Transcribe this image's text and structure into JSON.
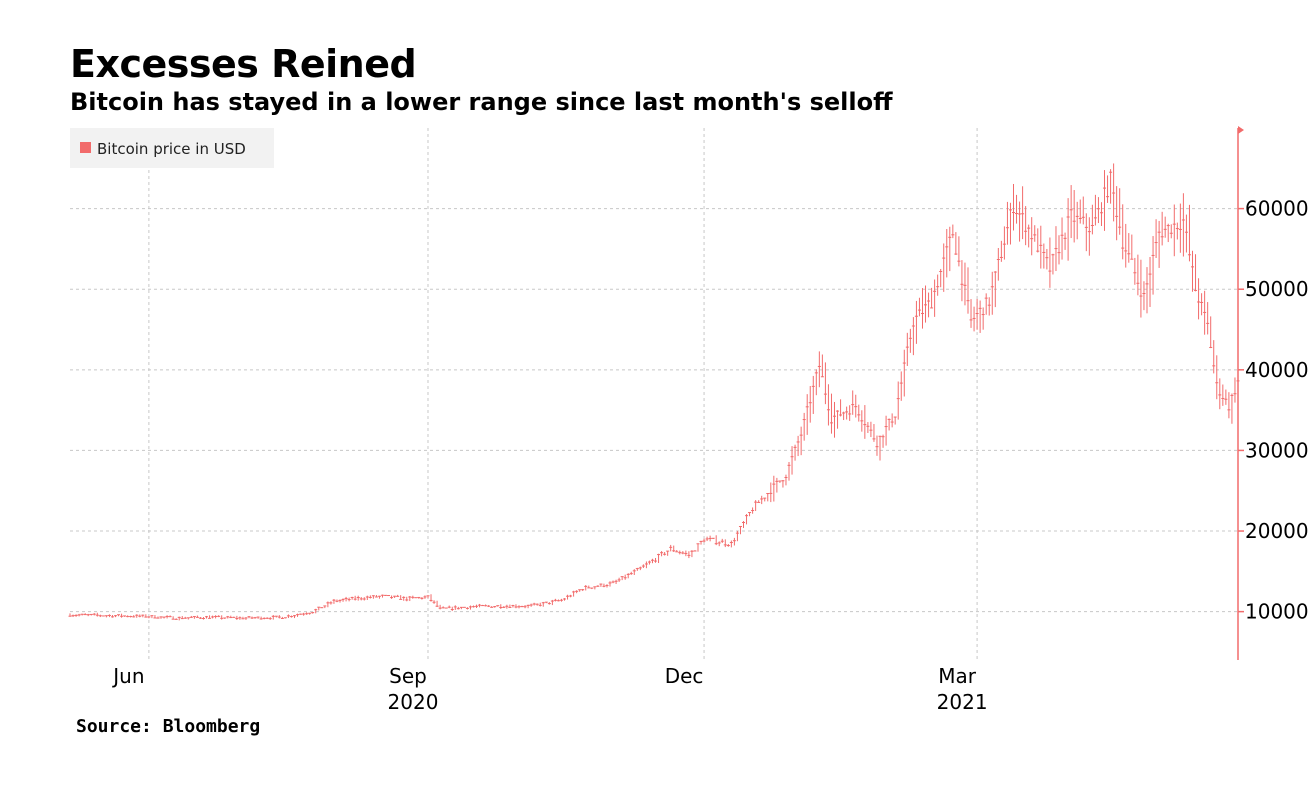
{
  "title": "Excesses Reined",
  "subtitle": "Bitcoin has stayed in a lower range since last month's selloff",
  "source": "Source: Bloomberg",
  "colors": {
    "series": "#f26b6b",
    "grid": "#c8c8c8",
    "legend_bg": "#f2f2f2",
    "axis": "#f26b6b"
  },
  "chart_data": {
    "type": "line",
    "series_style": "daily high-low range bars",
    "y_axis_side": "right",
    "ylim": [
      4000,
      70000
    ],
    "yticks": [
      10000,
      20000,
      30000,
      40000,
      50000,
      60000
    ],
    "ytick_labels": [
      "10000",
      "20000",
      "30000",
      "40000",
      "50000",
      "60000"
    ],
    "xlim": [
      "2020-05-06",
      "2021-05-26"
    ],
    "xticks": [
      {
        "date": "2020-06-01",
        "label": "Jun",
        "year": ""
      },
      {
        "date": "2020-09-01",
        "label": "Sep",
        "year": "2020"
      },
      {
        "date": "2020-12-01",
        "label": "Dec",
        "year": ""
      },
      {
        "date": "2021-03-01",
        "label": "Mar",
        "year": "2021"
      }
    ],
    "grid": true,
    "legend": {
      "placement": "top-left",
      "entries": [
        "Bitcoin price in USD"
      ]
    },
    "series": [
      {
        "name": "Bitcoin price in USD",
        "points": [
          [
            "2020-05-06",
            9600
          ],
          [
            "2020-05-20",
            9500
          ],
          [
            "2020-06-01",
            9400
          ],
          [
            "2020-06-10",
            9200
          ],
          [
            "2020-06-20",
            9300
          ],
          [
            "2020-07-01",
            9200
          ],
          [
            "2020-07-15",
            9300
          ],
          [
            "2020-07-25",
            10000
          ],
          [
            "2020-08-01",
            11300
          ],
          [
            "2020-08-10",
            11700
          ],
          [
            "2020-08-17",
            11900
          ],
          [
            "2020-08-25",
            11600
          ],
          [
            "2020-09-01",
            11800
          ],
          [
            "2020-09-05",
            10300
          ],
          [
            "2020-09-15",
            10600
          ],
          [
            "2020-09-25",
            10700
          ],
          [
            "2020-10-05",
            10700
          ],
          [
            "2020-10-15",
            11400
          ],
          [
            "2020-10-22",
            12900
          ],
          [
            "2020-11-01",
            13500
          ],
          [
            "2020-11-10",
            15300
          ],
          [
            "2020-11-20",
            17800
          ],
          [
            "2020-11-26",
            17000
          ],
          [
            "2020-12-01",
            19000
          ],
          [
            "2020-12-10",
            18400
          ],
          [
            "2020-12-17",
            22800
          ],
          [
            "2020-12-28",
            27000
          ],
          [
            "2021-01-02",
            32000
          ],
          [
            "2021-01-08",
            40500
          ],
          [
            "2021-01-12",
            34000
          ],
          [
            "2021-01-20",
            35500
          ],
          [
            "2021-01-27",
            31000
          ],
          [
            "2021-02-02",
            34500
          ],
          [
            "2021-02-08",
            46000
          ],
          [
            "2021-02-14",
            48500
          ],
          [
            "2021-02-21",
            57000
          ],
          [
            "2021-02-27",
            46000
          ],
          [
            "2021-03-05",
            48500
          ],
          [
            "2021-03-13",
            60500
          ],
          [
            "2021-03-18",
            57500
          ],
          [
            "2021-03-25",
            52500
          ],
          [
            "2021-04-01",
            59000
          ],
          [
            "2021-04-08",
            57500
          ],
          [
            "2021-04-14",
            63500
          ],
          [
            "2021-04-18",
            56000
          ],
          [
            "2021-04-25",
            49000
          ],
          [
            "2021-04-30",
            57000
          ],
          [
            "2021-05-08",
            58500
          ],
          [
            "2021-05-12",
            50000
          ],
          [
            "2021-05-16",
            45500
          ],
          [
            "2021-05-19",
            38000
          ],
          [
            "2021-05-23",
            35500
          ],
          [
            "2021-05-26",
            38500
          ]
        ]
      }
    ]
  }
}
